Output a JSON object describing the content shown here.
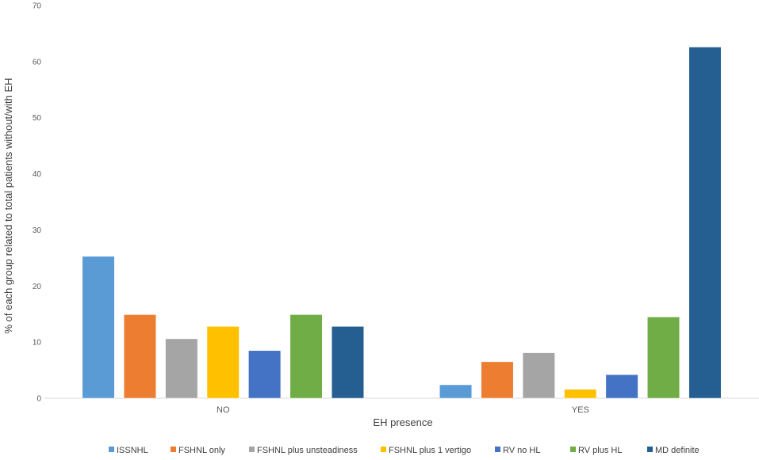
{
  "chart_data": {
    "type": "bar",
    "categories": [
      "NO",
      "YES"
    ],
    "series": [
      {
        "name": "ISSNHL",
        "values": [
          25.3,
          2.4
        ],
        "color": "#5B9BD5"
      },
      {
        "name": "FSHNL only",
        "values": [
          14.9,
          6.5
        ],
        "color": "#ED7D31"
      },
      {
        "name": "FSHNL plus unsteadiness",
        "values": [
          10.6,
          8.1
        ],
        "color": "#A5A5A5"
      },
      {
        "name": "FSHNL plus 1 vertigo",
        "values": [
          12.8,
          1.6
        ],
        "color": "#FFC000"
      },
      {
        "name": "RV no HL",
        "values": [
          8.5,
          4.2
        ],
        "color": "#4472C4"
      },
      {
        "name": "RV plus HL",
        "values": [
          14.9,
          14.5
        ],
        "color": "#70AD47"
      },
      {
        "name": "MD definite",
        "values": [
          12.8,
          62.6
        ],
        "color": "#255E91"
      }
    ],
    "xlabel": "EH presence",
    "ylabel": "% of each group related to total patients without/with EH",
    "ylim": [
      0,
      70
    ],
    "yticks": [
      0,
      10,
      20,
      30,
      40,
      50,
      60,
      70
    ],
    "grid": false,
    "legend_position": "bottom"
  }
}
